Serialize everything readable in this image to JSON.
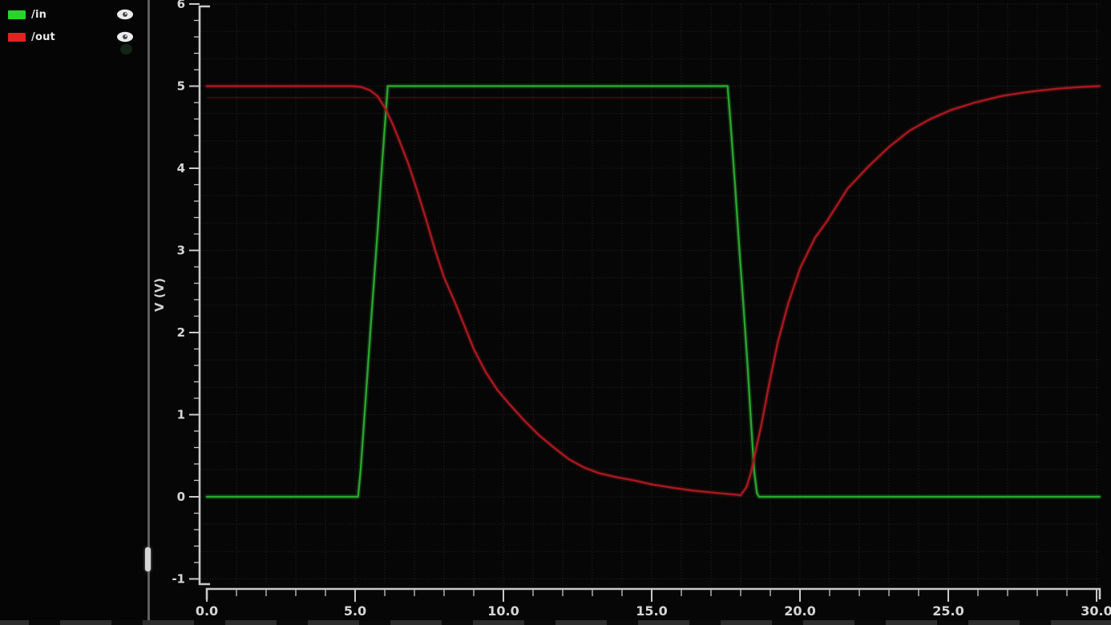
{
  "legend": {
    "items": [
      {
        "label": "/in",
        "swatch_color": "#2bd42b",
        "visibility_icon": "eye"
      },
      {
        "label": "/out",
        "swatch_color": "#e82020",
        "visibility_icon": "eye"
      }
    ]
  },
  "axes": {
    "y_title": "V (V)",
    "y_tick_labels": [
      "6",
      "5",
      "4",
      "3",
      "2",
      "1",
      "0",
      "-1"
    ],
    "x_tick_labels": [
      "0.0",
      "5.0",
      "10.0",
      "15.0",
      "20.0",
      "25.0",
      "30.0"
    ],
    "text_color": "#d6d6d6"
  },
  "chart_data": {
    "type": "line",
    "title": "",
    "xlabel": "",
    "ylabel": "V (V)",
    "xlim": [
      0,
      30
    ],
    "ylim": [
      -1,
      6
    ],
    "x_major_tick_step": 5,
    "x_minor_tick_step": 1,
    "y_major_tick_step": 1,
    "y_minor_tick_step": 0.2,
    "grid": {
      "style": "dotted",
      "color": "#2b302b",
      "x_step": 1,
      "y_step": 0.3333
    },
    "legend_position": "top-left-panel",
    "series": [
      {
        "name": "/in",
        "color": "#2aa52e",
        "points": [
          [
            0,
            0
          ],
          [
            5.1,
            0
          ],
          [
            5.18,
            0.3
          ],
          [
            5.35,
            1.15
          ],
          [
            5.55,
            2.2
          ],
          [
            5.75,
            3.2
          ],
          [
            5.92,
            4.1
          ],
          [
            6.03,
            4.65
          ],
          [
            6.1,
            5
          ],
          [
            17.56,
            5
          ],
          [
            17.66,
            4.55
          ],
          [
            17.8,
            3.85
          ],
          [
            17.95,
            3.05
          ],
          [
            18.1,
            2.3
          ],
          [
            18.24,
            1.55
          ],
          [
            18.36,
            0.85
          ],
          [
            18.46,
            0.3
          ],
          [
            18.55,
            0.04
          ],
          [
            18.62,
            0
          ],
          [
            30.1,
            0
          ]
        ]
      },
      {
        "name": "/out",
        "color": "#a8191f",
        "points": [
          [
            0,
            5
          ],
          [
            4.9,
            5
          ],
          [
            5.2,
            4.99
          ],
          [
            5.5,
            4.95
          ],
          [
            5.75,
            4.88
          ],
          [
            6.0,
            4.74
          ],
          [
            6.25,
            4.55
          ],
          [
            6.5,
            4.33
          ],
          [
            6.8,
            4.05
          ],
          [
            7.1,
            3.72
          ],
          [
            7.4,
            3.37
          ],
          [
            7.7,
            3.0
          ],
          [
            8.0,
            2.67
          ],
          [
            8.35,
            2.38
          ],
          [
            8.7,
            2.07
          ],
          [
            9.0,
            1.8
          ],
          [
            9.4,
            1.52
          ],
          [
            9.8,
            1.3
          ],
          [
            10.2,
            1.13
          ],
          [
            10.7,
            0.93
          ],
          [
            11.2,
            0.75
          ],
          [
            11.7,
            0.6
          ],
          [
            12.2,
            0.46
          ],
          [
            12.7,
            0.36
          ],
          [
            13.2,
            0.29
          ],
          [
            13.8,
            0.24
          ],
          [
            14.4,
            0.2
          ],
          [
            15.0,
            0.15
          ],
          [
            15.7,
            0.11
          ],
          [
            16.4,
            0.075
          ],
          [
            17.1,
            0.05
          ],
          [
            17.7,
            0.03
          ],
          [
            18.0,
            0.02
          ],
          [
            18.2,
            0.12
          ],
          [
            18.35,
            0.3
          ],
          [
            18.5,
            0.55
          ],
          [
            18.7,
            0.88
          ],
          [
            18.95,
            1.35
          ],
          [
            19.25,
            1.88
          ],
          [
            19.6,
            2.35
          ],
          [
            20.0,
            2.78
          ],
          [
            20.5,
            3.15
          ],
          [
            20.9,
            3.35
          ],
          [
            21.6,
            3.75
          ],
          [
            22.3,
            4.02
          ],
          [
            23.0,
            4.26
          ],
          [
            23.7,
            4.46
          ],
          [
            24.4,
            4.6
          ],
          [
            25.1,
            4.71
          ],
          [
            25.9,
            4.8
          ],
          [
            26.8,
            4.88
          ],
          [
            27.7,
            4.93
          ],
          [
            28.7,
            4.97
          ],
          [
            29.5,
            4.99
          ],
          [
            30.1,
            5.0
          ]
        ]
      }
    ],
    "artifacts": {
      "ghost_line": {
        "color": "#5a1419",
        "v": 4.86,
        "t_range": [
          0,
          17.6
        ]
      }
    }
  }
}
